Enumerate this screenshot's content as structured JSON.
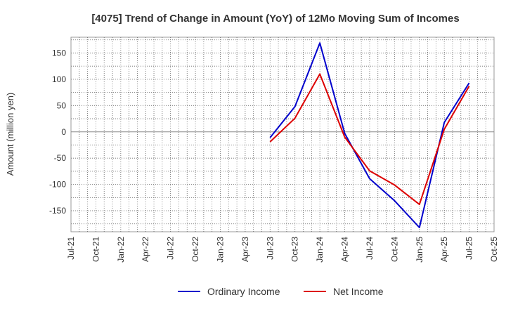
{
  "chart_data": {
    "type": "line",
    "title": "[4075]  Trend of Change in Amount (YoY) of 12Mo Moving Sum of Incomes",
    "ylabel": "Amount (million yen)",
    "xlabel": "",
    "ylim": [
      -190,
      180
    ],
    "yticks": [
      150,
      100,
      50,
      0,
      -50,
      -100,
      -150
    ],
    "x_tick_labels": [
      "Jul-21",
      "Oct-21",
      "Jan-22",
      "Apr-22",
      "Jul-22",
      "Oct-22",
      "Jan-23",
      "Apr-23",
      "Jul-23",
      "Oct-23",
      "Jan-24",
      "Apr-24",
      "Jul-24",
      "Oct-24",
      "Jan-25",
      "Apr-25",
      "Jul-25",
      "Oct-25"
    ],
    "grid": true,
    "legend_position": "bottom",
    "series": [
      {
        "name": "Ordinary Income",
        "color": "#0000cc",
        "points": [
          {
            "x": "Jul-23",
            "y": -11
          },
          {
            "x": "Oct-23",
            "y": 48
          },
          {
            "x": "Jan-24",
            "y": 169
          },
          {
            "x": "Apr-24",
            "y": -3
          },
          {
            "x": "Jul-24",
            "y": -89
          },
          {
            "x": "Oct-24",
            "y": -131
          },
          {
            "x": "Jan-25",
            "y": -182
          },
          {
            "x": "Apr-25",
            "y": 18
          },
          {
            "x": "Jul-25",
            "y": 93
          }
        ]
      },
      {
        "name": "Net Income",
        "color": "#dd0000",
        "points": [
          {
            "x": "Jul-23",
            "y": -19
          },
          {
            "x": "Oct-23",
            "y": 26
          },
          {
            "x": "Jan-24",
            "y": 110
          },
          {
            "x": "Apr-24",
            "y": -10
          },
          {
            "x": "Jul-24",
            "y": -74
          },
          {
            "x": "Oct-24",
            "y": -101
          },
          {
            "x": "Jan-25",
            "y": -138
          },
          {
            "x": "Apr-25",
            "y": 5
          },
          {
            "x": "Jul-25",
            "y": 87
          }
        ]
      }
    ]
  }
}
